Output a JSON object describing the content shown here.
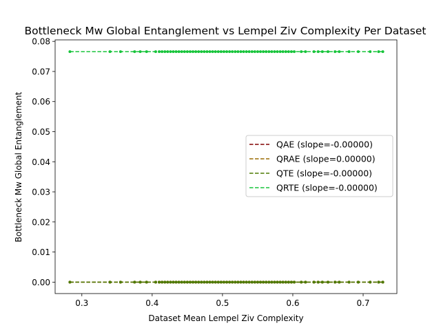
{
  "chart_data": {
    "type": "scatter",
    "title": "Bottleneck Mw Global Entanglement vs Lempel Ziv Complexity Per Dataset",
    "xlabel": "Dataset Mean Lempel Ziv Complexity",
    "ylabel": "Bottleneck Mw Global Entanglement",
    "xlim": [
      0.262,
      0.748
    ],
    "ylim": [
      -0.0038,
      0.0805
    ],
    "xticks": [
      "0.3",
      "0.4",
      "0.5",
      "0.6",
      "0.7"
    ],
    "yticks": [
      "0.00",
      "0.01",
      "0.02",
      "0.03",
      "0.04",
      "0.05",
      "0.06",
      "0.07",
      "0.08"
    ],
    "grid": false,
    "legend_position": "center-right",
    "x": [
      0.283,
      0.34,
      0.355,
      0.375,
      0.383,
      0.392,
      0.405,
      0.41,
      0.414,
      0.418,
      0.422,
      0.426,
      0.43,
      0.434,
      0.438,
      0.442,
      0.446,
      0.45,
      0.454,
      0.458,
      0.462,
      0.466,
      0.47,
      0.474,
      0.478,
      0.482,
      0.486,
      0.49,
      0.494,
      0.498,
      0.502,
      0.506,
      0.51,
      0.514,
      0.518,
      0.522,
      0.526,
      0.53,
      0.534,
      0.538,
      0.542,
      0.546,
      0.55,
      0.554,
      0.558,
      0.562,
      0.566,
      0.57,
      0.574,
      0.578,
      0.582,
      0.586,
      0.59,
      0.594,
      0.598,
      0.602,
      0.612,
      0.618,
      0.63,
      0.636,
      0.642,
      0.65,
      0.66,
      0.666,
      0.68,
      0.693,
      0.71,
      0.722,
      0.728
    ],
    "series": [
      {
        "name": "QAE (slope=-0.00000)",
        "color": "#800000",
        "slope": -0.0,
        "intercept": 0.0,
        "y": 0.0
      },
      {
        "name": "QRAE (slope=0.00000)",
        "color": "#9a6a00",
        "slope": 0.0,
        "intercept": 0.0,
        "y": 0.0
      },
      {
        "name": "QTE (slope=-0.00000)",
        "color": "#4c7a00",
        "slope": -0.0,
        "intercept": 0.0,
        "y": 0.0
      },
      {
        "name": "QRTE (slope=-0.00000)",
        "color": "#17c43a",
        "slope": -0.0,
        "intercept": 0.0766,
        "y": 0.0766
      }
    ]
  }
}
